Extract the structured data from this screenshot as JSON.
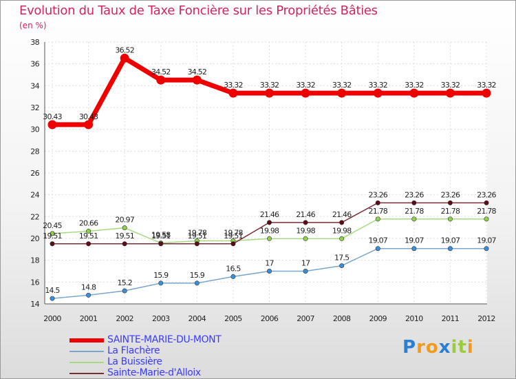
{
  "header": {
    "title": "Evolution du Taux de Taxe Foncière sur les Propriétés Bâties",
    "unit": "(en %)"
  },
  "logo": {
    "text": "Proxiti",
    "letters": [
      "P",
      "r",
      "o",
      "x",
      "i",
      "t",
      "i"
    ],
    "colors": [
      "#2a7fd4",
      "#f29a1c",
      "#f29a1c",
      "#2a7fd4",
      "#9bcc3c",
      "#9bcc3c",
      "#f29a1c"
    ]
  },
  "chart_data": {
    "type": "line",
    "title": "Evolution du Taux de Taxe Foncière sur les Propriétés Bâties",
    "ylabel": "(en %)",
    "xlabel": "",
    "ylim": [
      14,
      38
    ],
    "yticks": [
      14,
      16,
      18,
      20,
      22,
      24,
      26,
      28,
      30,
      32,
      34,
      36,
      38
    ],
    "grid": true,
    "legend_position": "bottom-left",
    "categories": [
      "2000",
      "2001",
      "2002",
      "2003",
      "2004",
      "2005",
      "2006",
      "2007",
      "2008",
      "2009",
      "2010",
      "2011",
      "2012"
    ],
    "series": [
      {
        "name": "SAINTE-MARIE-DU-MONT",
        "color": "#ee0000",
        "marker_color": "#ee0000",
        "emphasis": "thick",
        "values": [
          30.43,
          30.43,
          36.52,
          34.52,
          34.52,
          33.32,
          33.32,
          33.32,
          33.32,
          33.32,
          33.32,
          33.32,
          33.32
        ],
        "labels": [
          "30.43",
          "30.43",
          "36.52",
          "34.52",
          "34.52",
          "33.32",
          "33.32",
          "33.32",
          "33.32",
          "33.32",
          "33.32",
          "33.32",
          "33.32"
        ]
      },
      {
        "name": "La Flachère",
        "color": "#7aa6cc",
        "marker_color": "#3a8fd8",
        "emphasis": "normal",
        "values": [
          14.5,
          14.8,
          15.2,
          15.9,
          15.9,
          16.5,
          17,
          17,
          17.5,
          19.07,
          19.07,
          19.07,
          19.07
        ],
        "labels": [
          "14.5",
          "14.8",
          "15.2",
          "15.9",
          "15.9",
          "16.5",
          "17",
          "17",
          "17.5",
          "19.07",
          "19.07",
          "19.07",
          "19.07"
        ]
      },
      {
        "name": "La Buissière",
        "color": "#a6da82",
        "marker_color": "#8fd14a",
        "emphasis": "normal",
        "values": [
          20.45,
          20.66,
          20.97,
          19.58,
          19.78,
          19.78,
          19.98,
          19.98,
          19.98,
          21.78,
          21.78,
          21.78,
          21.78
        ],
        "labels": [
          "20.45",
          "20.66",
          "20.97",
          "19.58",
          "19.78",
          "19.78",
          "19.98",
          "19.98",
          "19.98",
          "21.78",
          "21.78",
          "21.78",
          "21.78"
        ]
      },
      {
        "name": "Sainte-Marie-d'Alloix",
        "color": "#7a2c36",
        "marker_color": "#5a0c18",
        "emphasis": "normal",
        "values": [
          19.51,
          19.51,
          19.51,
          19.51,
          19.51,
          19.51,
          21.46,
          21.46,
          21.46,
          23.26,
          23.26,
          23.26,
          23.26
        ],
        "labels": [
          "19.51",
          "19.51",
          "19.51",
          "19.51",
          "19.51",
          "19.51",
          "21.46",
          "21.46",
          "21.46",
          "23.26",
          "23.26",
          "23.26",
          "23.26"
        ]
      }
    ]
  }
}
